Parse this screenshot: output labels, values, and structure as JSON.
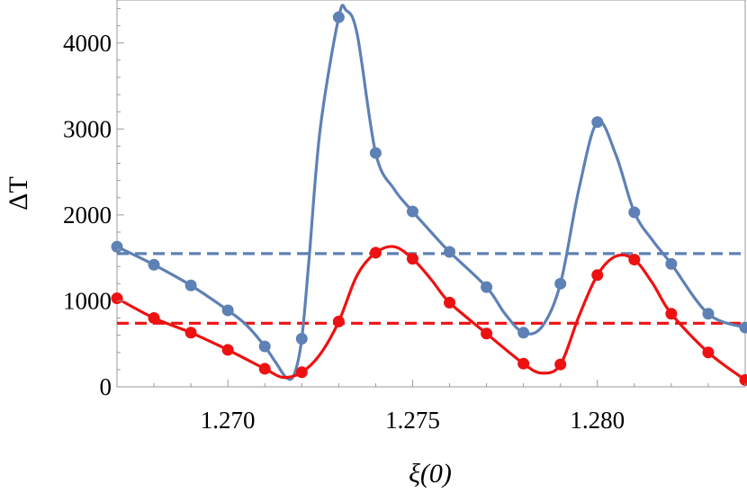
{
  "chart_data": {
    "type": "line",
    "xlabel": "ξ(0)",
    "ylabel": "ΔT",
    "xlim": [
      1.267,
      1.284
    ],
    "ylim": [
      0,
      4500
    ],
    "xticks": [
      1.27,
      1.275,
      1.28
    ],
    "xtick_labels": [
      "1.270",
      "1.275",
      "1.280"
    ],
    "yticks": [
      0,
      1000,
      2000,
      3000,
      4000
    ],
    "ytick_labels": [
      "0",
      "1000",
      "2000",
      "3000",
      "4000"
    ],
    "grid": false,
    "series": [
      {
        "color": "#5e81b5",
        "style": "solid-with-points",
        "x": [
          1.267,
          1.268,
          1.269,
          1.27,
          1.271,
          1.272,
          1.273,
          1.274,
          1.275,
          1.276,
          1.277,
          1.278,
          1.279,
          1.28,
          1.281,
          1.282,
          1.283,
          1.284
        ],
        "values": [
          1630,
          1420,
          1180,
          890,
          470,
          560,
          4300,
          2720,
          2040,
          1570,
          1160,
          630,
          1200,
          3080,
          2030,
          1430,
          850,
          690
        ],
        "curve_x": [
          1.267,
          1.268,
          1.269,
          1.27,
          1.2705,
          1.271,
          1.2713,
          1.2716,
          1.2718,
          1.272,
          1.2722,
          1.2725,
          1.273,
          1.2732,
          1.2735,
          1.274,
          1.2745,
          1.275,
          1.2755,
          1.276,
          1.277,
          1.2775,
          1.278,
          1.2785,
          1.279,
          1.2795,
          1.28,
          1.2805,
          1.281,
          1.2815,
          1.282,
          1.283,
          1.284
        ],
        "curve_y": [
          1630,
          1420,
          1180,
          890,
          720,
          470,
          280,
          100,
          150,
          560,
          1500,
          3000,
          4300,
          4380,
          4100,
          2720,
          2300,
          2040,
          1800,
          1570,
          1160,
          850,
          630,
          700,
          1200,
          2300,
          3080,
          2700,
          2030,
          1700,
          1430,
          850,
          690
        ],
        "mean": 1550
      },
      {
        "color": "#ee1111",
        "style": "solid-with-points",
        "x": [
          1.267,
          1.268,
          1.269,
          1.27,
          1.271,
          1.272,
          1.273,
          1.274,
          1.275,
          1.276,
          1.277,
          1.278,
          1.279,
          1.28,
          1.281,
          1.282,
          1.283,
          1.284
        ],
        "values": [
          1030,
          800,
          630,
          430,
          210,
          170,
          760,
          1560,
          1490,
          980,
          620,
          270,
          260,
          1300,
          1480,
          850,
          400,
          80
        ],
        "curve_x": [
          1.267,
          1.268,
          1.269,
          1.27,
          1.271,
          1.2715,
          1.272,
          1.2725,
          1.273,
          1.2735,
          1.274,
          1.2745,
          1.275,
          1.2755,
          1.276,
          1.277,
          1.278,
          1.2785,
          1.279,
          1.2795,
          1.28,
          1.2805,
          1.281,
          1.2815,
          1.282,
          1.283,
          1.284
        ],
        "curve_y": [
          1030,
          800,
          630,
          430,
          210,
          110,
          170,
          380,
          760,
          1300,
          1560,
          1630,
          1490,
          1250,
          980,
          620,
          270,
          160,
          260,
          820,
          1300,
          1520,
          1480,
          1200,
          850,
          400,
          80
        ],
        "mean": 740
      }
    ]
  }
}
